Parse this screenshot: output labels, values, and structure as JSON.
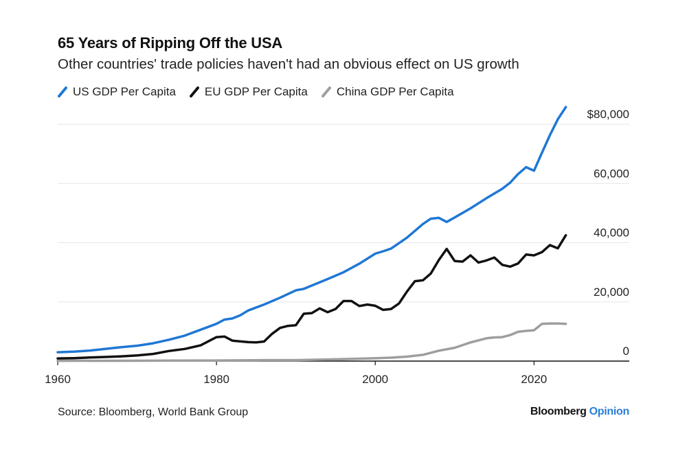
{
  "chart_data": {
    "type": "line",
    "title": "65 Years of Ripping Off the USA",
    "subtitle": "Other countries' trade policies haven't had an obvious effect on US growth",
    "source": "Source: Bloomberg, World Bank Group",
    "brand": {
      "name": "Bloomberg",
      "suffix": "Opinion"
    },
    "xlabel": "",
    "ylabel": "",
    "xlim": [
      1960,
      2032
    ],
    "ylim": [
      0,
      80000
    ],
    "x_ticks": [
      1960,
      1980,
      2000,
      2020
    ],
    "y_ticks": [
      {
        "value": 80000,
        "label": "$80,000"
      },
      {
        "value": 60000,
        "label": "60,000"
      },
      {
        "value": 40000,
        "label": "40,000"
      },
      {
        "value": 20000,
        "label": "20,000"
      },
      {
        "value": 0,
        "label": "0"
      }
    ],
    "legend_position": "top-left",
    "series": [
      {
        "name": "US GDP Per Capita",
        "color": "#1f77d4",
        "x": [
          1960,
          1962,
          1964,
          1966,
          1968,
          1970,
          1972,
          1974,
          1976,
          1978,
          1980,
          1981,
          1982,
          1983,
          1984,
          1986,
          1988,
          1990,
          1991,
          1992,
          1994,
          1996,
          1998,
          2000,
          2001,
          2002,
          2004,
          2006,
          2007,
          2008,
          2009,
          2010,
          2012,
          2014,
          2016,
          2017,
          2018,
          2019,
          2020,
          2021,
          2022,
          2023,
          2024
        ],
        "values": [
          3000,
          3200,
          3550,
          4100,
          4700,
          5200,
          6000,
          7200,
          8600,
          10600,
          12600,
          14000,
          14400,
          15500,
          17100,
          19100,
          21400,
          23900,
          24400,
          25500,
          27700,
          30000,
          32900,
          36300,
          37100,
          38000,
          41700,
          46300,
          48100,
          48400,
          47000,
          48500,
          51600,
          55000,
          58200,
          60300,
          63200,
          65500,
          64300,
          70400,
          76300,
          81700,
          85800
        ]
      },
      {
        "name": "EU GDP Per Capita",
        "color": "#111111",
        "x": [
          1960,
          1962,
          1964,
          1966,
          1968,
          1970,
          1972,
          1974,
          1976,
          1978,
          1980,
          1981,
          1982,
          1984,
          1985,
          1986,
          1987,
          1988,
          1989,
          1990,
          1991,
          1992,
          1993,
          1994,
          1995,
          1996,
          1997,
          1998,
          1999,
          2000,
          2001,
          2002,
          2003,
          2004,
          2005,
          2006,
          2007,
          2008,
          2009,
          2010,
          2011,
          2012,
          2013,
          2014,
          2015,
          2016,
          2017,
          2018,
          2019,
          2020,
          2021,
          2022,
          2023,
          2024
        ],
        "values": [
          900,
          1000,
          1200,
          1400,
          1600,
          1900,
          2400,
          3400,
          4100,
          5300,
          8100,
          8300,
          6900,
          6400,
          6300,
          6600,
          9200,
          11200,
          11900,
          12100,
          16000,
          16200,
          17800,
          16500,
          17600,
          20300,
          20300,
          18600,
          19100,
          18700,
          17300,
          17600,
          19500,
          23500,
          27000,
          27300,
          29600,
          34100,
          37900,
          33800,
          33600,
          35700,
          33300,
          34000,
          35000,
          32500,
          31900,
          33000,
          36000,
          35700,
          36800,
          39200,
          38100,
          42500
        ]
      },
      {
        "name": "China GDP Per Capita",
        "color": "#9e9e9e",
        "x": [
          1960,
          1970,
          1980,
          1985,
          1990,
          1995,
          2000,
          2002,
          2004,
          2006,
          2008,
          2010,
          2012,
          2014,
          2015,
          2016,
          2017,
          2018,
          2019,
          2020,
          2021,
          2022,
          2023,
          2024
        ],
        "values": [
          90,
          110,
          200,
          290,
          320,
          600,
          960,
          1150,
          1500,
          2100,
          3500,
          4500,
          6300,
          7700,
          8000,
          8100,
          8800,
          9900,
          10200,
          10400,
          12600,
          12700,
          12700,
          12600
        ]
      }
    ]
  }
}
